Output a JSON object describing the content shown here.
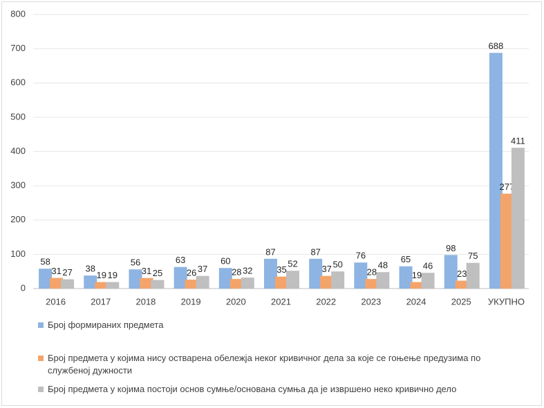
{
  "chart_data": {
    "type": "bar",
    "categories": [
      "2016",
      "2017",
      "2018",
      "2019",
      "2020",
      "2021",
      "2022",
      "2023",
      "2024",
      "2025",
      "УКУПНО"
    ],
    "series": [
      {
        "name": "Број формираних предмета",
        "color": "#8db4e2",
        "values": [
          58,
          38,
          56,
          63,
          60,
          87,
          87,
          76,
          65,
          98,
          688
        ]
      },
      {
        "name": "Број предмета у којима нису остварена обележја неког кривичног дела за које се гоњење предузима по службеној дужности",
        "color": "#f4a46a",
        "values": [
          31,
          19,
          31,
          26,
          28,
          35,
          37,
          28,
          19,
          23,
          277
        ]
      },
      {
        "name": "Број предмета у којима постоји основ сумње/основана сумња да је извршено неко кривично дело",
        "color": "#bfbfbf",
        "values": [
          27,
          19,
          25,
          37,
          32,
          52,
          50,
          48,
          46,
          75,
          411
        ]
      }
    ],
    "ylim": [
      0,
      800
    ],
    "yticks": [
      0,
      100,
      200,
      300,
      400,
      500,
      600,
      700,
      800
    ],
    "grid": true
  }
}
